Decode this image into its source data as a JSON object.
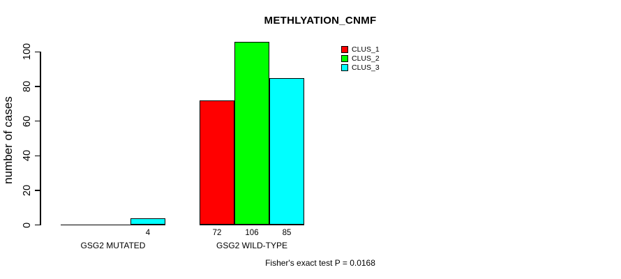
{
  "chart_data": {
    "type": "bar",
    "title": "METHLYATION_CNMF",
    "ylabel": "number of cases",
    "xlabel": "",
    "categories": [
      "GSG2 MUTATED",
      "GSG2 WILD-TYPE"
    ],
    "series": [
      {
        "name": "CLUS_1",
        "color": "#FF0000",
        "values": [
          0,
          72
        ]
      },
      {
        "name": "CLUS_2",
        "color": "#00FF00",
        "values": [
          0,
          106
        ]
      },
      {
        "name": "CLUS_3",
        "color": "#00FFFF",
        "values": [
          4,
          85
        ]
      }
    ],
    "bar_value_labels": [
      [
        "",
        "",
        "4"
      ],
      [
        "72",
        "106",
        "85"
      ]
    ],
    "yticks": [
      0,
      20,
      40,
      60,
      80,
      100
    ],
    "ylim": [
      0,
      106
    ],
    "grid": false,
    "legend_position": "top-right",
    "legend_entries": [
      "CLUS_1",
      "CLUS_2",
      "CLUS_3"
    ],
    "annotation": "Fisher's exact test P = 0.0168",
    "bar_border_color": "#000000",
    "background_color": "#FFFFFF",
    "text_color": "#000000"
  }
}
